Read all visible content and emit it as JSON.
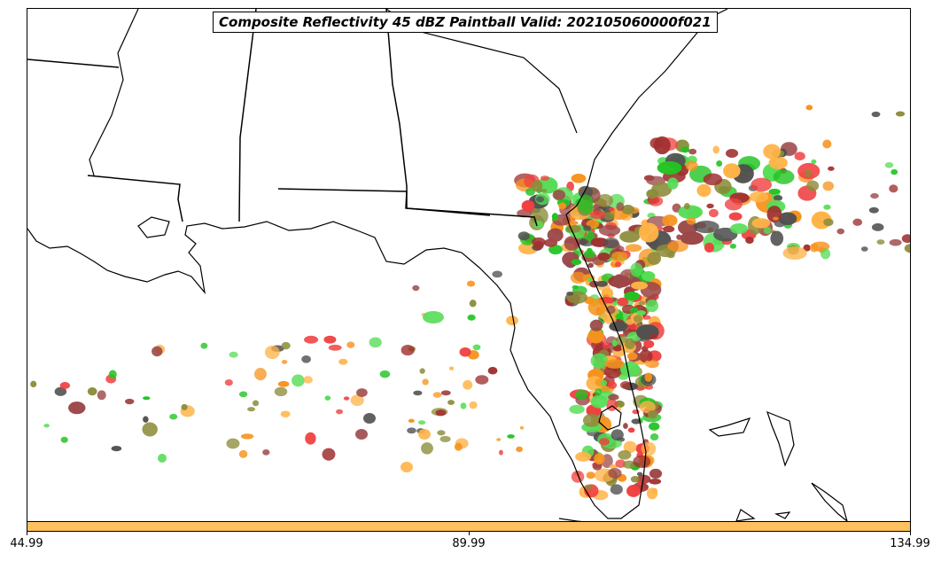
{
  "title": "Composite Reflectivity 45 dBZ Paintball Valid: 202105060000f021",
  "colorbar": {
    "color": "#ffc15e",
    "ticks": [
      "44.99",
      "89.99",
      "134.99"
    ]
  },
  "palette": {
    "red": "#f04040",
    "dark_red": "#a03030",
    "brown": "#9c4848",
    "orange": "#f7931e",
    "light_orange": "#ffb347",
    "green": "#22c322",
    "light_green": "#55dd55",
    "olive": "#8c8c3a",
    "gray": "#505050",
    "lines": "#000000"
  }
}
